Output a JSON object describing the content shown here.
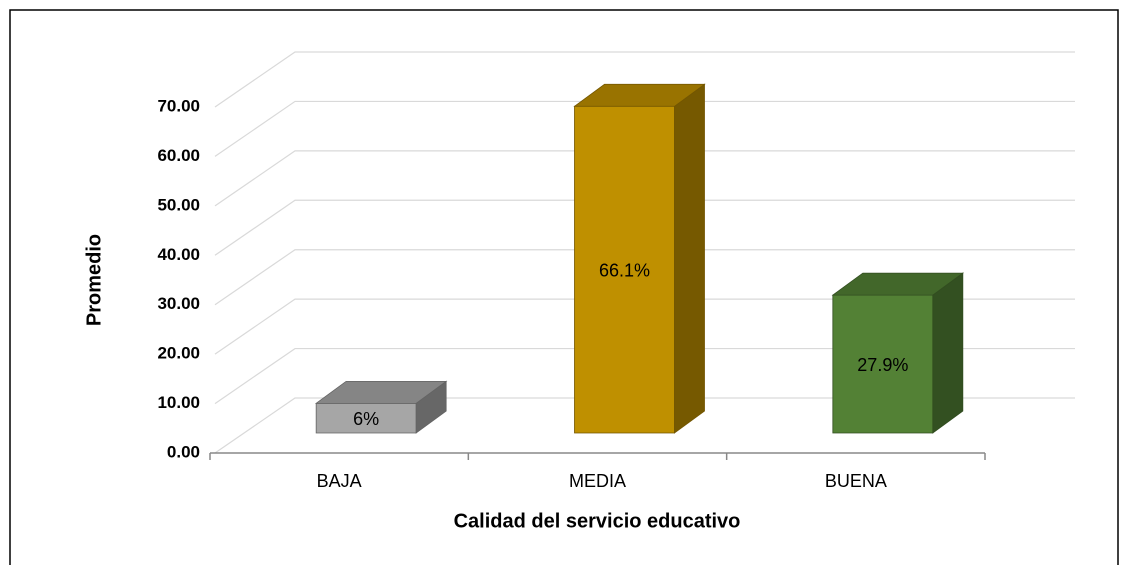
{
  "chart_data": {
    "type": "bar3d",
    "x_label": "Calidad del servicio educativo",
    "y_label": "Promedio",
    "categories": [
      "BAJA",
      "MEDIA",
      "BUENA"
    ],
    "values": [
      6,
      66.1,
      27.9
    ],
    "value_labels": [
      "6%",
      "66.1%",
      "27.9%"
    ],
    "colors": [
      "#a6a6a6",
      "#bf9000",
      "#538135"
    ],
    "ylim": [
      0,
      70
    ],
    "yticks": [
      {
        "value": 0,
        "label": "0.00"
      },
      {
        "value": 10,
        "label": "10.00"
      },
      {
        "value": 20,
        "label": "20.00"
      },
      {
        "value": 30,
        "label": "30.00"
      },
      {
        "value": 40,
        "label": "40.00"
      },
      {
        "value": 50,
        "label": "50.00"
      },
      {
        "value": 60,
        "label": "60.00"
      },
      {
        "value": 70,
        "label": "70.00"
      }
    ],
    "grid": true
  }
}
